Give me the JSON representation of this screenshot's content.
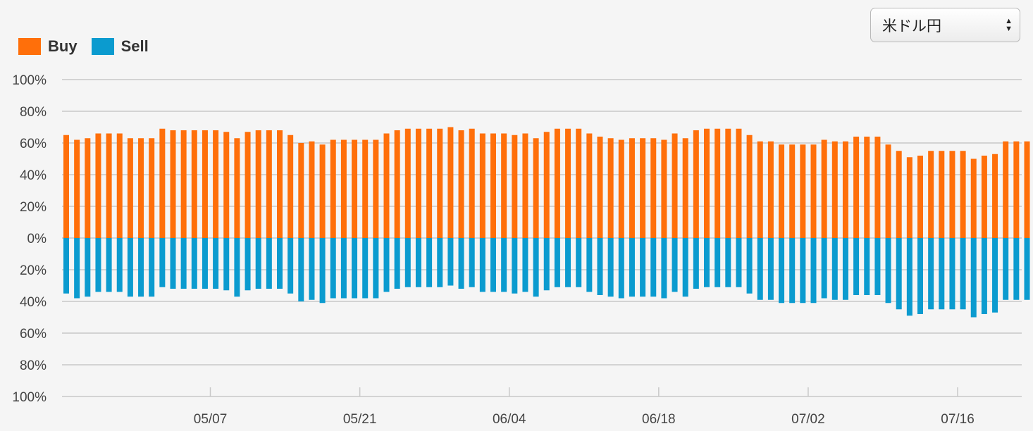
{
  "selector": {
    "value": "米ドル円",
    "arrows_icon": "up-down-arrows-icon"
  },
  "colors": {
    "buy": "#ff6f0a",
    "sell": "#0b9bcf",
    "grid": "#c8c8c8",
    "background": "#f5f5f5"
  },
  "chart_data": {
    "type": "bar",
    "legend": [
      {
        "name": "Buy",
        "color": "#ff6f0a"
      },
      {
        "name": "Sell",
        "color": "#0b9bcf"
      }
    ],
    "y_ticks": [
      "100%",
      "80%",
      "60%",
      "40%",
      "20%",
      "0%",
      "20%",
      "40%",
      "60%",
      "80%",
      "100%"
    ],
    "ylim": [
      -100,
      100
    ],
    "x_ticks": [
      {
        "label": "05/07",
        "index": 13.5
      },
      {
        "label": "05/21",
        "index": 27.5
      },
      {
        "label": "06/04",
        "index": 41.5
      },
      {
        "label": "06/18",
        "index": 55.5
      },
      {
        "label": "07/02",
        "index": 69.5
      },
      {
        "label": "07/16",
        "index": 83.5
      }
    ],
    "series": [
      {
        "name": "Buy",
        "values": [
          65,
          62,
          63,
          66,
          66,
          66,
          63,
          63,
          63,
          69,
          68,
          68,
          68,
          68,
          68,
          67,
          63,
          67,
          68,
          68,
          68,
          65,
          60,
          61,
          59,
          62,
          62,
          62,
          62,
          62,
          66,
          68,
          69,
          69,
          69,
          69,
          70,
          68,
          69,
          66,
          66,
          66,
          65,
          66,
          63,
          67,
          69,
          69,
          69,
          66,
          64,
          63,
          62,
          63,
          63,
          63,
          62,
          66,
          63,
          68,
          69,
          69,
          69,
          69,
          65,
          61,
          61,
          59,
          59,
          59,
          59,
          62,
          61,
          61,
          64,
          64,
          64,
          59,
          55,
          51,
          52,
          55,
          55,
          55,
          55,
          50,
          52,
          53,
          61,
          61,
          61
        ]
      },
      {
        "name": "Sell",
        "values": [
          35,
          38,
          37,
          34,
          34,
          34,
          37,
          37,
          37,
          31,
          32,
          32,
          32,
          32,
          32,
          33,
          37,
          33,
          32,
          32,
          32,
          35,
          40,
          39,
          41,
          38,
          38,
          38,
          38,
          38,
          34,
          32,
          31,
          31,
          31,
          31,
          30,
          32,
          31,
          34,
          34,
          34,
          35,
          34,
          37,
          33,
          31,
          31,
          31,
          34,
          36,
          37,
          38,
          37,
          37,
          37,
          38,
          34,
          37,
          32,
          31,
          31,
          31,
          31,
          35,
          39,
          39,
          41,
          41,
          41,
          41,
          38,
          39,
          39,
          36,
          36,
          36,
          41,
          45,
          49,
          48,
          45,
          45,
          45,
          45,
          50,
          48,
          47,
          39,
          39,
          39
        ]
      }
    ]
  }
}
